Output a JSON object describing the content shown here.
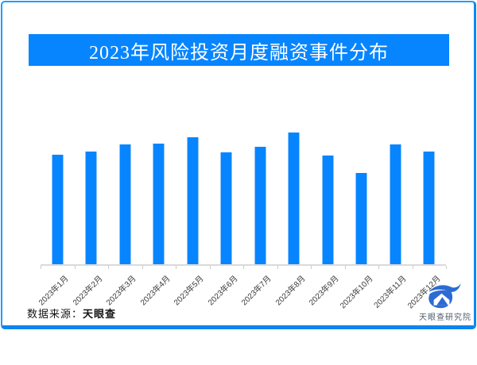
{
  "title": {
    "text": "2023年风险投资月度融资事件分布"
  },
  "chart_data": {
    "type": "bar",
    "title": "2023年风险投资月度融资事件分布",
    "categories": [
      "2023年1月",
      "2023年2月",
      "2023年3月",
      "2023年4月",
      "2023年5月",
      "2023年6月",
      "2023年7月",
      "2023年8月",
      "2023年9月",
      "2023年10月",
      "2023年11月",
      "2023年12月"
    ],
    "values": [
      138,
      142,
      151,
      152,
      160,
      141,
      148,
      166,
      137,
      115,
      151,
      142
    ],
    "xlabel": "",
    "ylabel": "",
    "ylim": [
      0,
      178
    ],
    "y_axis_labels_visible": false,
    "grid": false,
    "legend": "none",
    "value_scale": "relative bar heights (no numeric axis shown in image)"
  },
  "footer": {
    "source_label": "数据来源：",
    "source_value": "天眼查"
  },
  "logo": {
    "text": "天眼查研究院"
  },
  "colors": {
    "bar": "#0785ff",
    "bar_edge": "#8cc4ff",
    "title_band": "#0785ff",
    "frame_border": "#1f9dfb",
    "frame_border_bottom": "#0d85ec",
    "axis_line": "#dadada",
    "tick": "#c9c9c9",
    "tick_label": "#3b3b3b",
    "logo_blue": "#2b6bd3",
    "logo_text": "#4e5d6b"
  }
}
